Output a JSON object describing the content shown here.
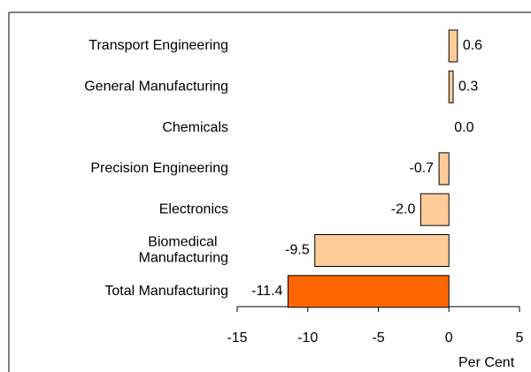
{
  "chart_data": {
    "type": "bar",
    "orientation": "horizontal",
    "categories": [
      "Transport Engineering",
      "General Manufacturing",
      "Chemicals",
      "Precision Engineering",
      "Electronics",
      "Biomedical Manufacturing",
      "Total Manufacturing"
    ],
    "values": [
      0.6,
      0.3,
      0.0,
      -0.7,
      -2.0,
      -9.5,
      -11.4
    ],
    "value_labels": [
      "0.6",
      "0.3",
      "0.0",
      "-0.7",
      "-2.0",
      "-9.5",
      "-11.4"
    ],
    "colors": [
      "#ffcc99",
      "#ffcc99",
      "#ffcc99",
      "#ffcc99",
      "#ffcc99",
      "#ffcc99",
      "#ff6600"
    ],
    "xlabel": "Per Cent",
    "xlim": [
      -15,
      5
    ],
    "xticks": [
      -15,
      -10,
      -5,
      0,
      5
    ],
    "grid": false
  }
}
